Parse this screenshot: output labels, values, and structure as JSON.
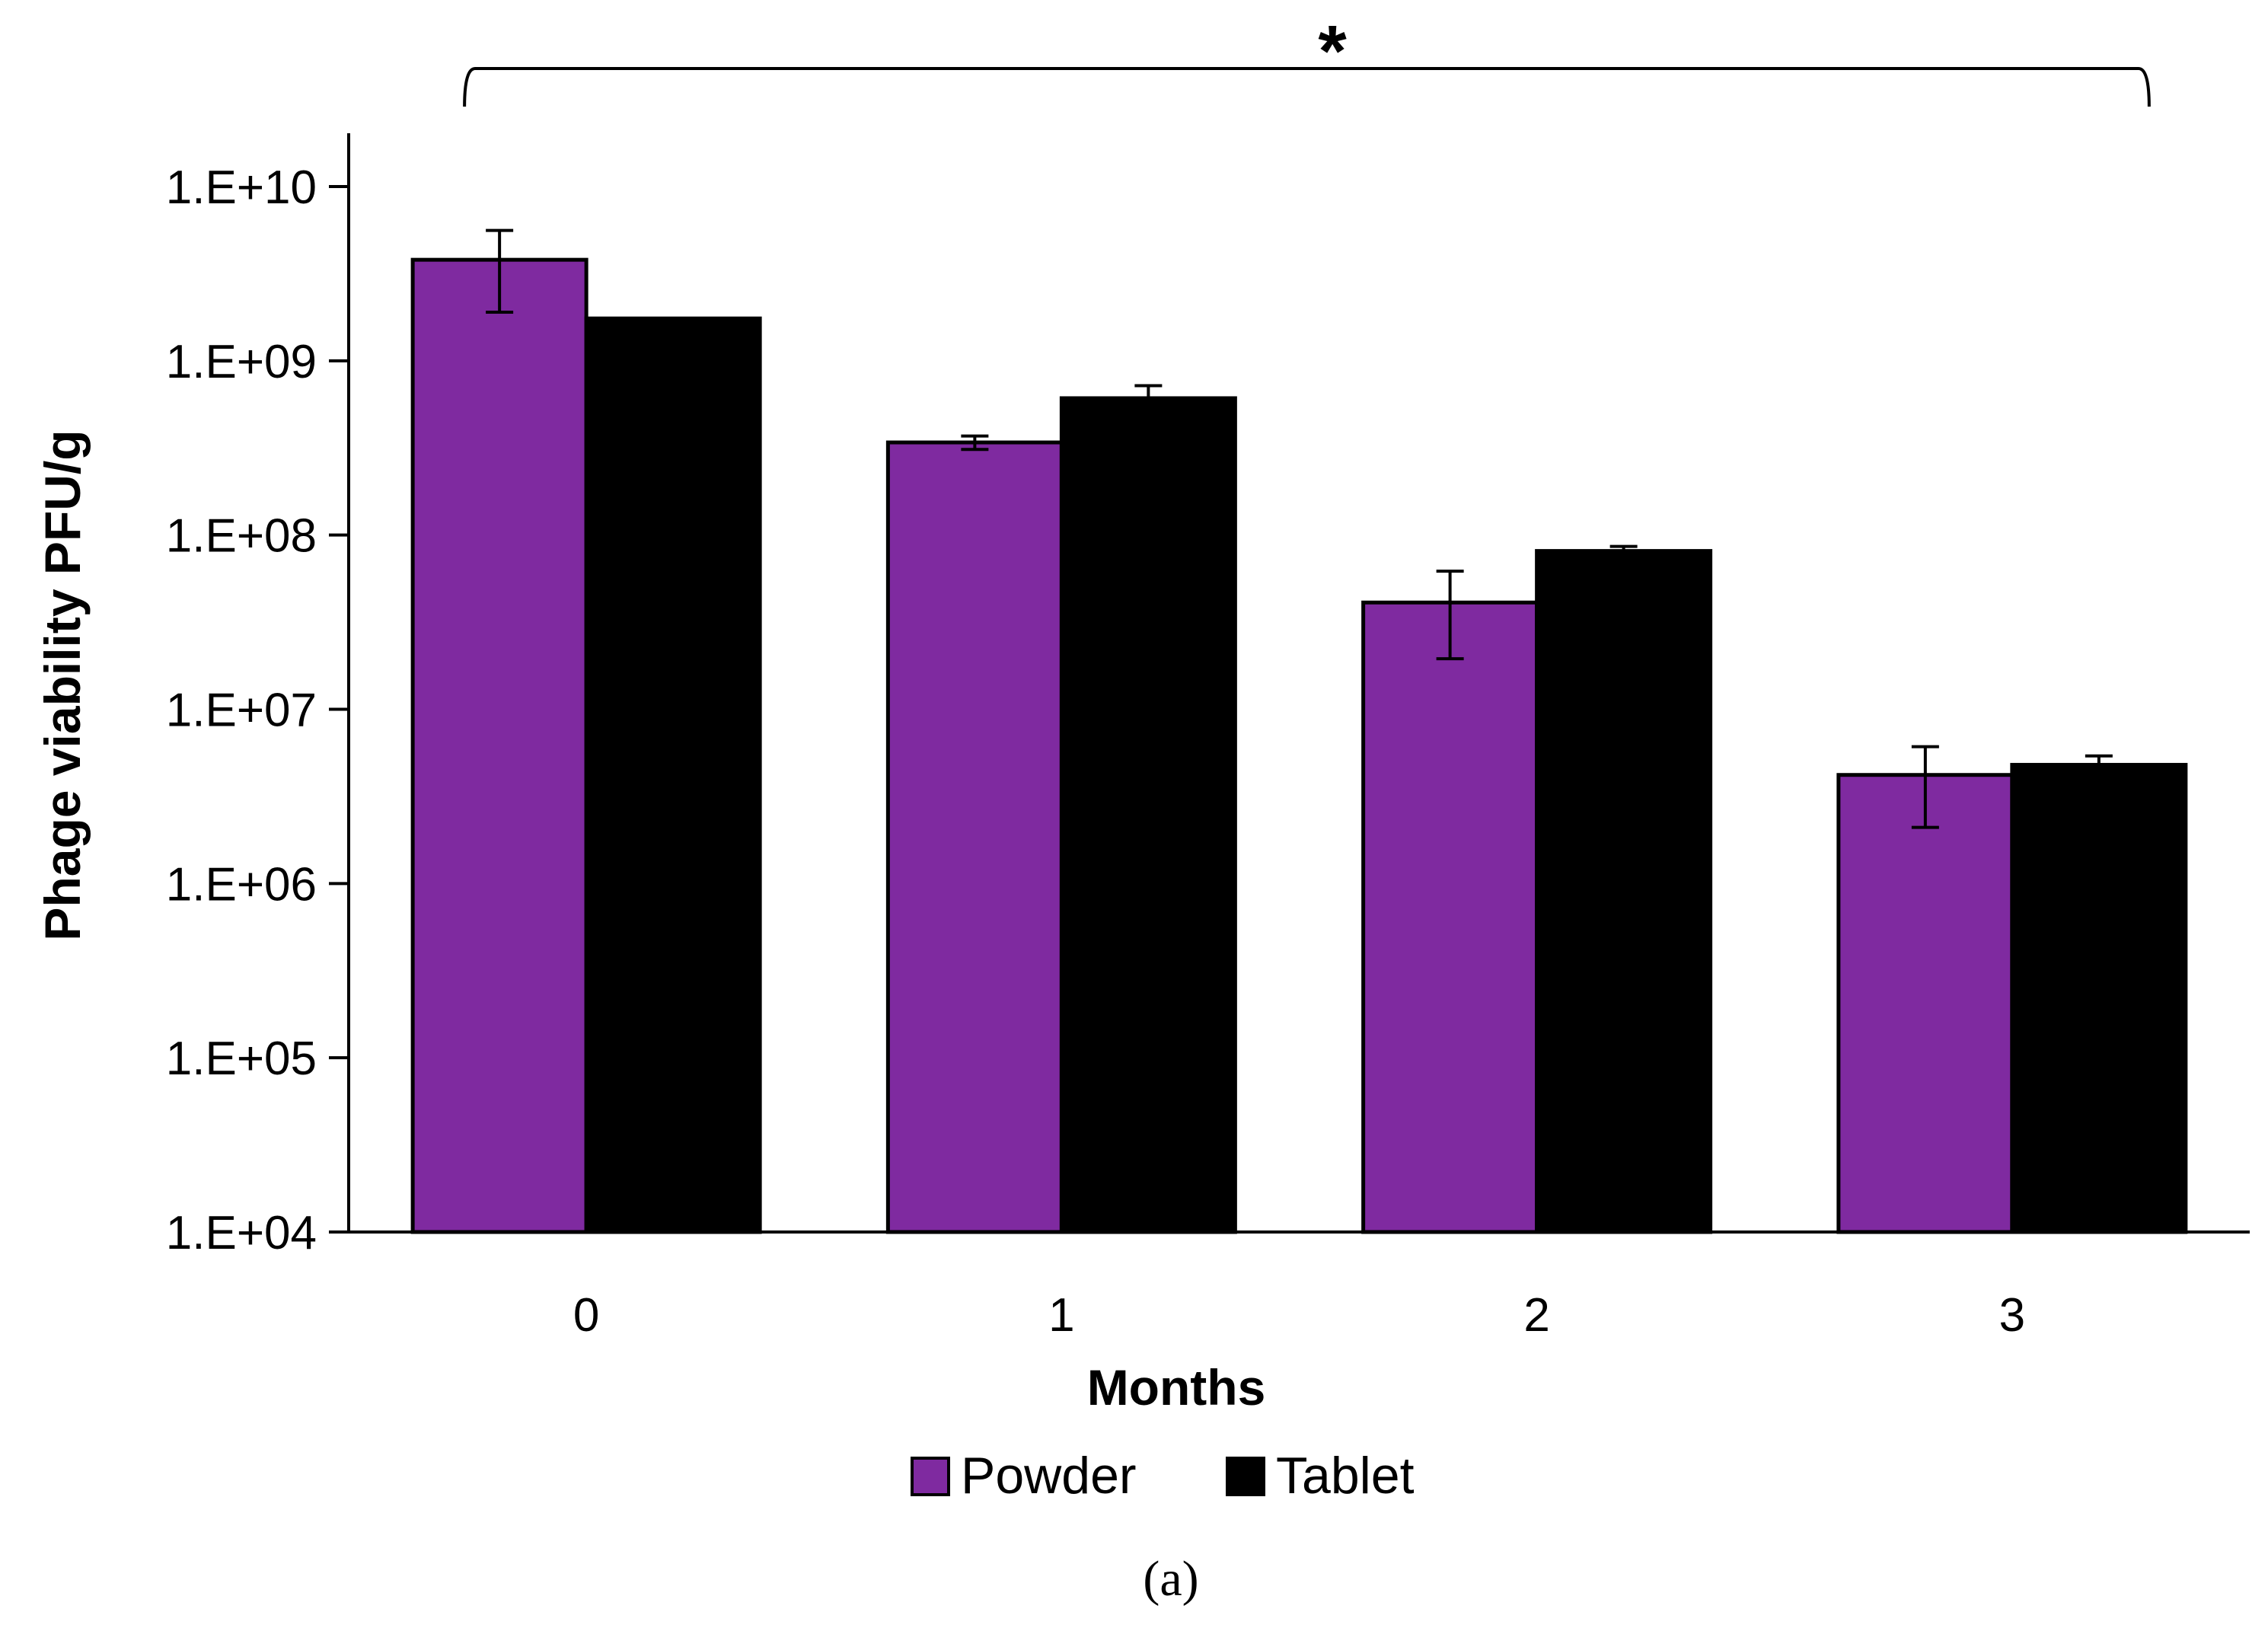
{
  "chart_data": {
    "type": "bar",
    "categories": [
      "0",
      "1",
      "2",
      "3"
    ],
    "series": [
      {
        "name": "Powder",
        "color": "#7F2AA0",
        "values": [
          3800000000,
          340000000,
          41000000,
          4200000
        ],
        "error_low": [
          1900000000,
          310000000,
          19500000,
          2100000
        ],
        "error_high": [
          5600000000,
          370000000,
          62000000,
          6100000
        ]
      },
      {
        "name": "Tablet",
        "color": "#000000",
        "values": [
          1750000000,
          610000000,
          81000000,
          4800000
        ],
        "error_low": [
          1750000000,
          610000000,
          81000000,
          4800000
        ],
        "error_high": [
          1750000000,
          720000000,
          86000000,
          5400000
        ]
      }
    ],
    "xlabel": "Months",
    "ylabel": "Phage viability PFU/g",
    "yscale": "log",
    "ylim": [
      10000,
      10000000000
    ],
    "yticks": [
      "1.E+04",
      "1.E+05",
      "1.E+06",
      "1.E+07",
      "1.E+08",
      "1.E+09",
      "1.E+10"
    ],
    "significance": "*",
    "significance_span": [
      "0",
      "3"
    ],
    "legend_position": "bottom",
    "panel_label": "(a)",
    "grid": false
  }
}
